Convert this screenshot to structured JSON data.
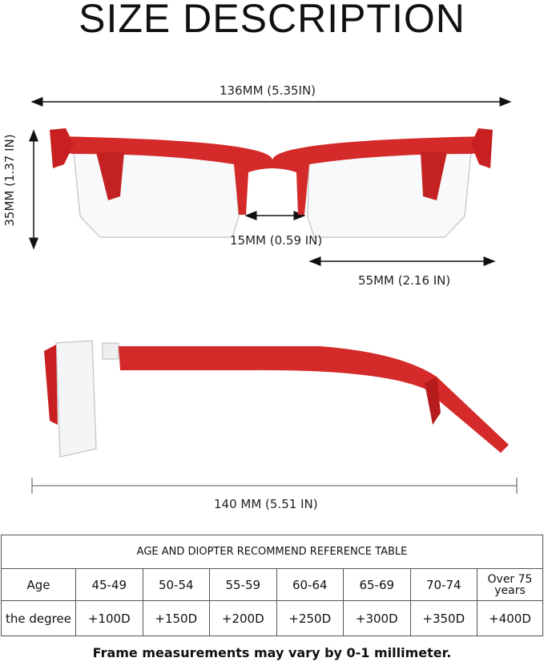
{
  "title": "SIZE DESCRIPTION",
  "dimensions": {
    "total_width": "136MM (5.35IN)",
    "lens_height": "35MM (1.37 IN)",
    "bridge": "15MM (0.59 IN)",
    "lens_width": "55MM (2.16 IN)",
    "temple_length": "140 MM (5.51 IN)"
  },
  "colors": {
    "frame": "#d42a2a",
    "frame_dark": "#a51818"
  },
  "table": {
    "title": "AGE AND DIOPTER RECOMMEND REFERENCE TABLE",
    "row_labels": [
      "Age",
      "the degree"
    ],
    "ages": [
      "45-49",
      "50-54",
      "55-59",
      "60-64",
      "65-69",
      "70-74",
      "Over 75 years"
    ],
    "degrees": [
      "+100D",
      "+150D",
      "+200D",
      "+250D",
      "+300D",
      "+350D",
      "+400D"
    ]
  },
  "note": "Frame measurements may vary by 0-1 millimeter."
}
